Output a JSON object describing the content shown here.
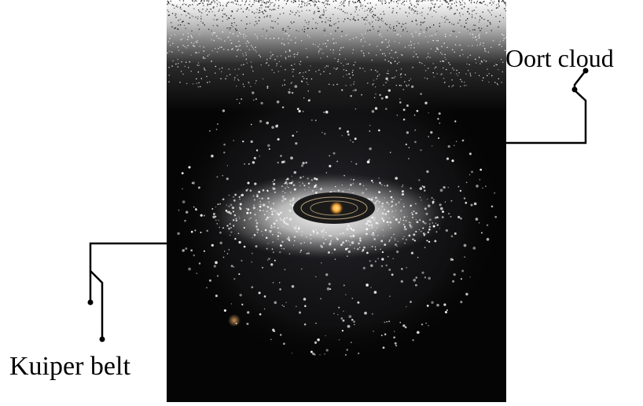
{
  "labels": {
    "oort_cloud": "Oort cloud",
    "kuiper_belt": "Kuiper belt"
  },
  "palette": {
    "space": "#050505",
    "dust": "#f2f2f2",
    "belt": "#d9d9d9",
    "sun": "#f2a23a",
    "ink": "#000000"
  }
}
